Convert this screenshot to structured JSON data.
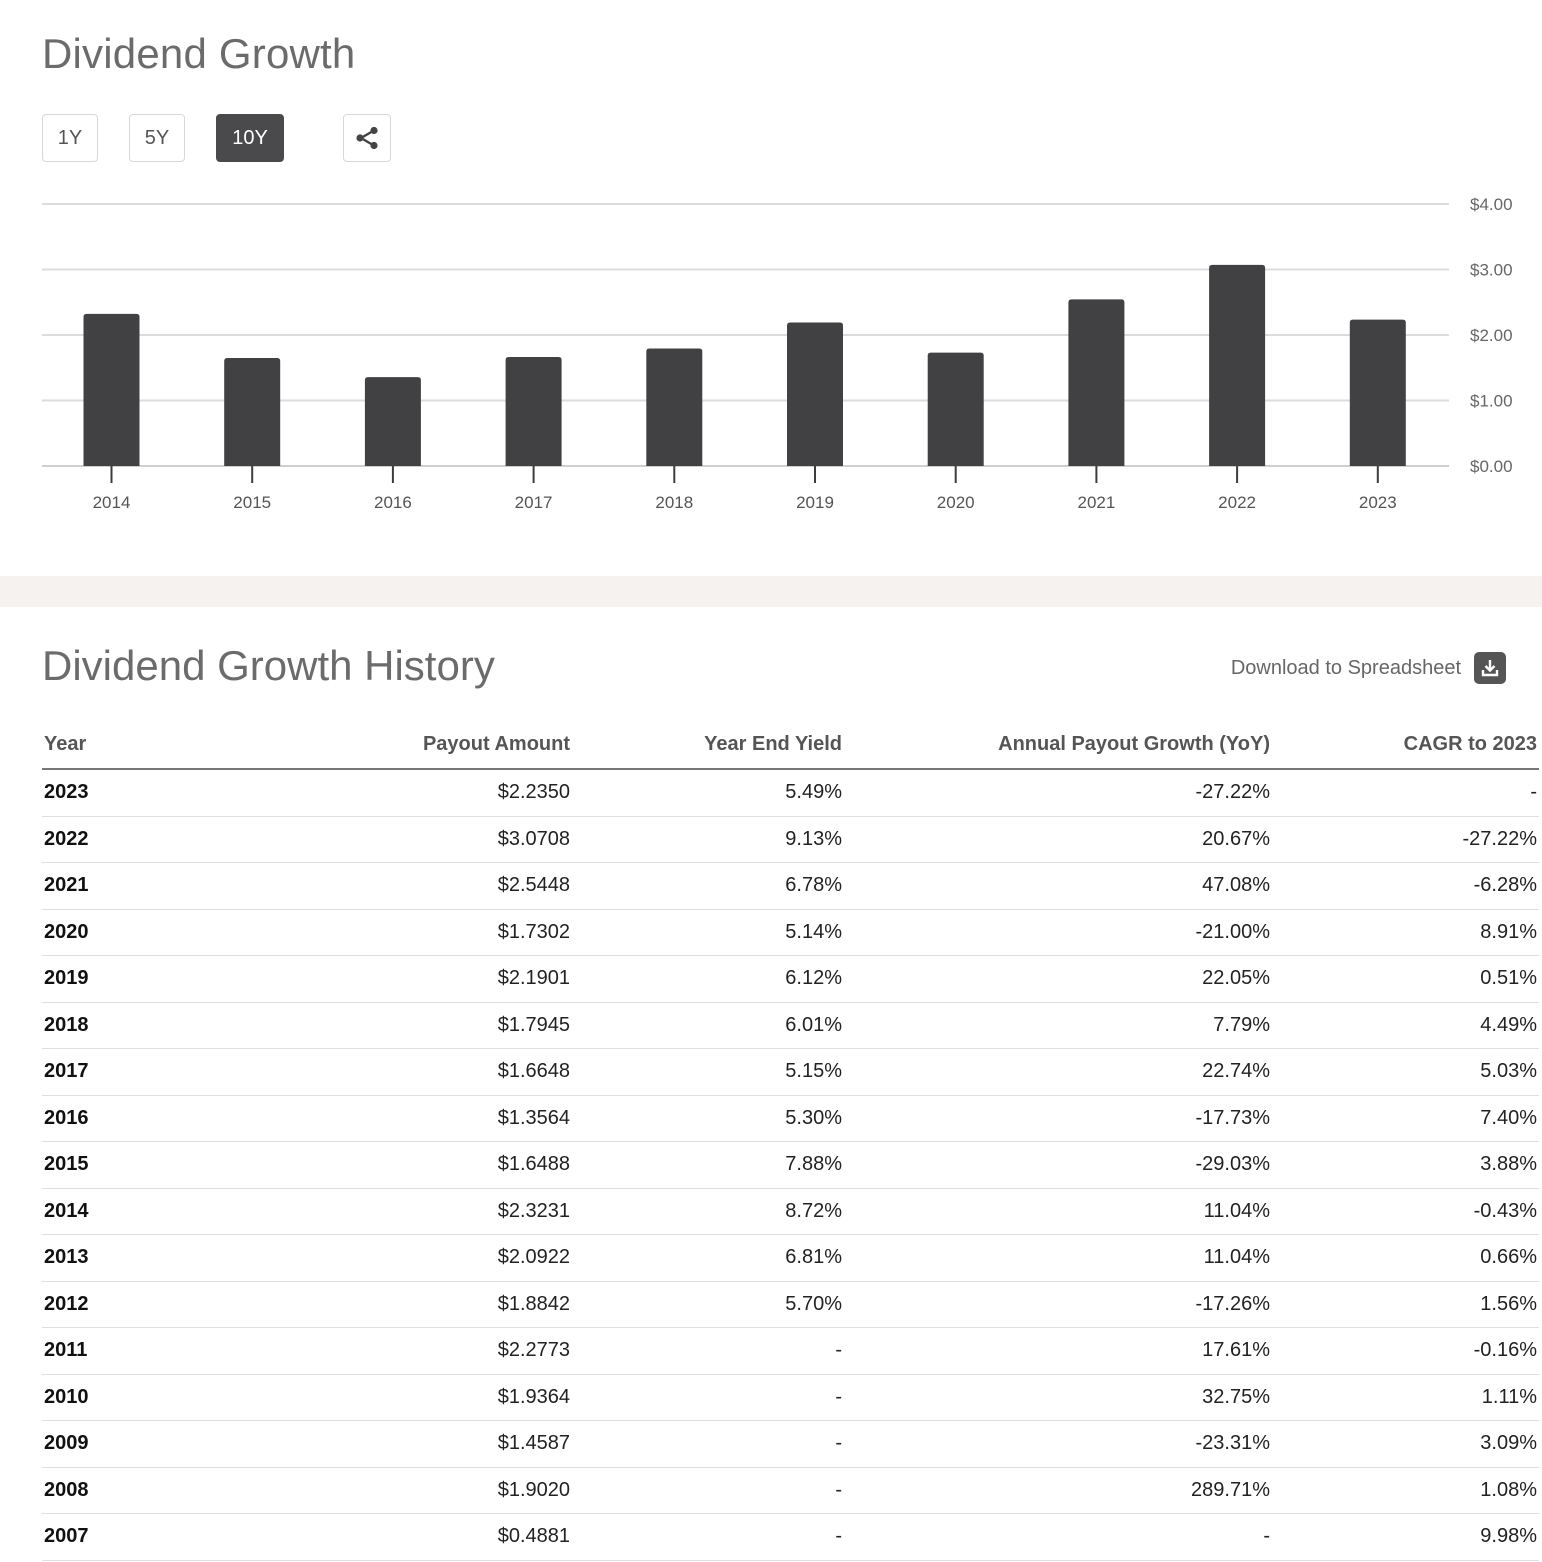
{
  "header": {
    "title": "Dividend Growth"
  },
  "periods": {
    "y1": "1Y",
    "y5": "5Y",
    "y10": "10Y",
    "active": "10Y"
  },
  "icons": {
    "share": "share-icon",
    "download": "download-icon"
  },
  "colors": {
    "bar": "#414143",
    "active_button": "#4a4a4c",
    "title": "#6b6b6b",
    "divider": "#f5f2f0"
  },
  "chart_data": {
    "type": "bar",
    "title": "",
    "xlabel": "",
    "ylabel": "",
    "categories": [
      "2014",
      "2015",
      "2016",
      "2017",
      "2018",
      "2019",
      "2020",
      "2021",
      "2022",
      "2023"
    ],
    "values": [
      2.3231,
      1.6488,
      1.3564,
      1.6648,
      1.7945,
      2.1901,
      1.7302,
      2.5448,
      3.0708,
      2.235
    ],
    "ylim": [
      0,
      4
    ],
    "yticks": [
      0,
      1,
      2,
      3,
      4
    ],
    "ytick_labels": [
      "$0.00",
      "$1.00",
      "$2.00",
      "$3.00",
      "$4.00"
    ],
    "y_axis_side": "right",
    "grid": true
  },
  "history": {
    "title": "Dividend Growth History",
    "download_label": "Download to Spreadsheet",
    "columns": {
      "year": "Year",
      "payout": "Payout Amount",
      "yield": "Year End Yield",
      "growth": "Annual Payout Growth (YoY)",
      "cagr": "CAGR to 2023"
    },
    "rows": [
      {
        "year": "2023",
        "payout": "$2.2350",
        "yield": "5.49%",
        "growth": "-27.22%",
        "cagr": "-"
      },
      {
        "year": "2022",
        "payout": "$3.0708",
        "yield": "9.13%",
        "growth": "20.67%",
        "cagr": "-27.22%"
      },
      {
        "year": "2021",
        "payout": "$2.5448",
        "yield": "6.78%",
        "growth": "47.08%",
        "cagr": "-6.28%"
      },
      {
        "year": "2020",
        "payout": "$1.7302",
        "yield": "5.14%",
        "growth": "-21.00%",
        "cagr": "8.91%"
      },
      {
        "year": "2019",
        "payout": "$2.1901",
        "yield": "6.12%",
        "growth": "22.05%",
        "cagr": "0.51%"
      },
      {
        "year": "2018",
        "payout": "$1.7945",
        "yield": "6.01%",
        "growth": "7.79%",
        "cagr": "4.49%"
      },
      {
        "year": "2017",
        "payout": "$1.6648",
        "yield": "5.15%",
        "growth": "22.74%",
        "cagr": "5.03%"
      },
      {
        "year": "2016",
        "payout": "$1.3564",
        "yield": "5.30%",
        "growth": "-17.73%",
        "cagr": "7.40%"
      },
      {
        "year": "2015",
        "payout": "$1.6488",
        "yield": "7.88%",
        "growth": "-29.03%",
        "cagr": "3.88%"
      },
      {
        "year": "2014",
        "payout": "$2.3231",
        "yield": "8.72%",
        "growth": "11.04%",
        "cagr": "-0.43%"
      },
      {
        "year": "2013",
        "payout": "$2.0922",
        "yield": "6.81%",
        "growth": "11.04%",
        "cagr": "0.66%"
      },
      {
        "year": "2012",
        "payout": "$1.8842",
        "yield": "5.70%",
        "growth": "-17.26%",
        "cagr": "1.56%"
      },
      {
        "year": "2011",
        "payout": "$2.2773",
        "yield": "-",
        "growth": "17.61%",
        "cagr": "-0.16%"
      },
      {
        "year": "2010",
        "payout": "$1.9364",
        "yield": "-",
        "growth": "32.75%",
        "cagr": "1.11%"
      },
      {
        "year": "2009",
        "payout": "$1.4587",
        "yield": "-",
        "growth": "-23.31%",
        "cagr": "3.09%"
      },
      {
        "year": "2008",
        "payout": "$1.9020",
        "yield": "-",
        "growth": "289.71%",
        "cagr": "1.08%"
      },
      {
        "year": "2007",
        "payout": "$0.4881",
        "yield": "-",
        "growth": "-",
        "cagr": "9.98%"
      }
    ]
  }
}
